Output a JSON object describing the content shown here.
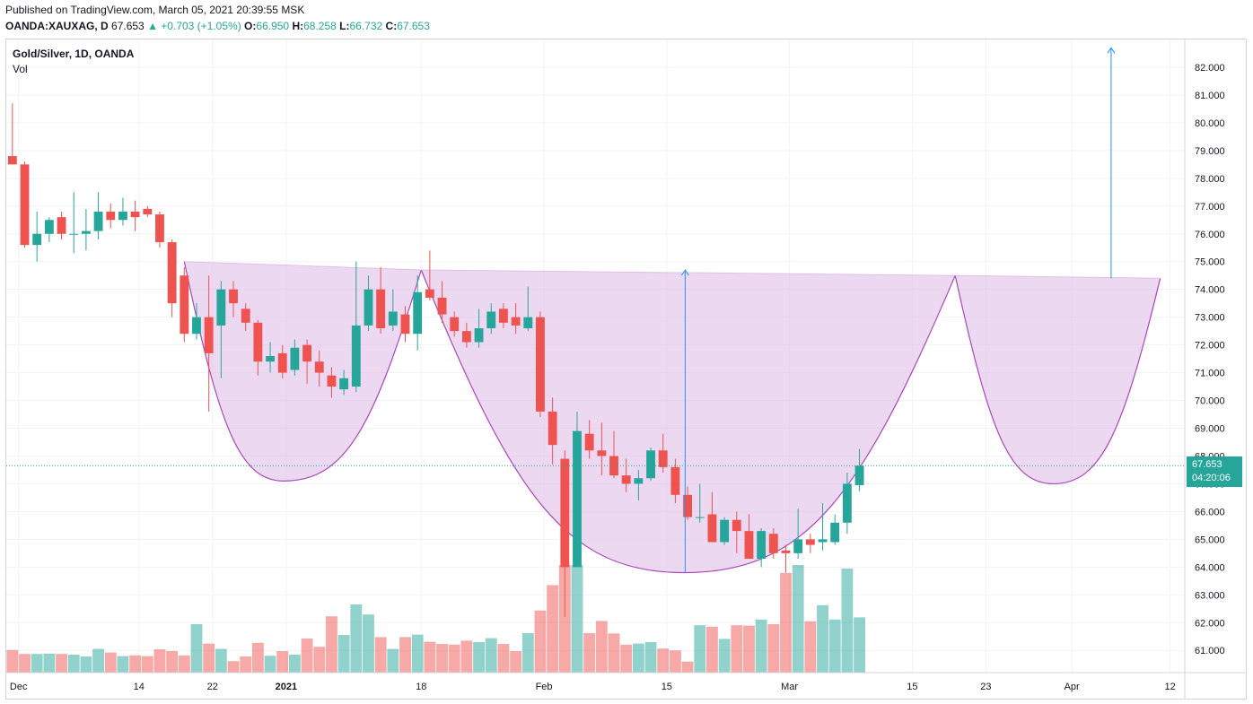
{
  "header": {
    "published": "Published on TradingView.com, March 05, 2021 20:39:55 MSK",
    "symbol": "OANDA:XAUXAG, D",
    "last": "67.653",
    "change": "+0.703 (+1.05%)",
    "open_label": "O:",
    "open": "66.950",
    "high_label": "H:",
    "high": "68.258",
    "low_label": "L:",
    "low": "66.732",
    "close_label": "C:",
    "close": "67.653"
  },
  "legend": {
    "title": "Gold/Silver, 1D, OANDA",
    "volume": "Vol"
  },
  "badge": {
    "price": "67.653",
    "countdown": "04:20:06"
  },
  "colors": {
    "up": "#26a69a",
    "down": "#ef5350",
    "pattern_fill": "#e1bee7",
    "pattern_stroke": "#ab47bc",
    "arrow": "#2196f3"
  },
  "chart_data": {
    "type": "candlestick",
    "title": "Gold/Silver, 1D, OANDA",
    "ylim": [
      60.2,
      83.0
    ],
    "yticks": [
      61,
      62,
      63,
      64,
      65,
      66,
      67,
      68,
      69,
      70,
      71,
      72,
      73,
      74,
      75,
      76,
      77,
      78,
      79,
      80,
      81,
      82
    ],
    "ytick_labels": [
      "61.000",
      "62.000",
      "63.000",
      "64.000",
      "65.000",
      "66.000",
      "67.000",
      "68.000",
      "69.000",
      "70.000",
      "71.000",
      "72.000",
      "73.000",
      "74.000",
      "75.000",
      "76.000",
      "77.000",
      "78.000",
      "79.000",
      "80.000",
      "81.000",
      "82.000"
    ],
    "x_range": [
      -0.5,
      95.5
    ],
    "xticks": [
      {
        "label": "Dec",
        "pos": 0.5,
        "bold": false
      },
      {
        "label": "14",
        "pos": 10.3,
        "bold": false
      },
      {
        "label": "22",
        "pos": 16.3,
        "bold": false
      },
      {
        "label": "2021",
        "pos": 22.3,
        "bold": true
      },
      {
        "label": "18",
        "pos": 33.3,
        "bold": false
      },
      {
        "label": "Feb",
        "pos": 43.3,
        "bold": false
      },
      {
        "label": "15",
        "pos": 53.3,
        "bold": false
      },
      {
        "label": "Mar",
        "pos": 63.3,
        "bold": false
      },
      {
        "label": "15",
        "pos": 73.3,
        "bold": false
      },
      {
        "label": "23",
        "pos": 79.3,
        "bold": false
      },
      {
        "label": "Apr",
        "pos": 86.3,
        "bold": false
      },
      {
        "label": "12",
        "pos": 94.3,
        "bold": false
      }
    ],
    "candles": [
      {
        "o": 78.8,
        "h": 80.7,
        "l": 78.5,
        "c": 78.5,
        "v": 0.63
      },
      {
        "o": 78.5,
        "h": 78.6,
        "l": 75.5,
        "c": 75.6,
        "v": 0.52
      },
      {
        "o": 75.6,
        "h": 76.8,
        "l": 75.0,
        "c": 76.0,
        "v": 0.52
      },
      {
        "o": 76.0,
        "h": 76.6,
        "l": 75.7,
        "c": 76.5,
        "v": 0.53
      },
      {
        "o": 76.6,
        "h": 76.8,
        "l": 75.8,
        "c": 76.0,
        "v": 0.52
      },
      {
        "o": 76.0,
        "h": 77.5,
        "l": 75.3,
        "c": 76.0,
        "v": 0.5
      },
      {
        "o": 76.0,
        "h": 76.9,
        "l": 75.4,
        "c": 76.1,
        "v": 0.45
      },
      {
        "o": 76.1,
        "h": 77.5,
        "l": 75.8,
        "c": 76.8,
        "v": 0.66
      },
      {
        "o": 76.8,
        "h": 77.1,
        "l": 76.2,
        "c": 76.5,
        "v": 0.56
      },
      {
        "o": 76.5,
        "h": 77.3,
        "l": 76.3,
        "c": 76.8,
        "v": 0.46
      },
      {
        "o": 76.8,
        "h": 77.2,
        "l": 76.1,
        "c": 76.6,
        "v": 0.48
      },
      {
        "o": 76.9,
        "h": 77.0,
        "l": 76.6,
        "c": 76.7,
        "v": 0.46
      },
      {
        "o": 76.7,
        "h": 76.8,
        "l": 75.5,
        "c": 75.7,
        "v": 0.65
      },
      {
        "o": 75.7,
        "h": 75.8,
        "l": 73.0,
        "c": 73.5,
        "v": 0.6
      },
      {
        "o": 74.5,
        "h": 74.8,
        "l": 72.1,
        "c": 72.4,
        "v": 0.48
      },
      {
        "o": 72.4,
        "h": 73.5,
        "l": 72.2,
        "c": 73.0,
        "v": 1.35
      },
      {
        "o": 73.0,
        "h": 74.5,
        "l": 69.6,
        "c": 71.7,
        "v": 0.81
      },
      {
        "o": 72.7,
        "h": 74.3,
        "l": 70.8,
        "c": 74.0,
        "v": 0.66
      },
      {
        "o": 74.0,
        "h": 74.3,
        "l": 73.0,
        "c": 73.5,
        "v": 0.32
      },
      {
        "o": 73.3,
        "h": 73.5,
        "l": 72.5,
        "c": 72.8,
        "v": 0.45
      },
      {
        "o": 72.8,
        "h": 72.9,
        "l": 70.9,
        "c": 71.4,
        "v": 0.83
      },
      {
        "o": 71.4,
        "h": 72.1,
        "l": 71.0,
        "c": 71.6,
        "v": 0.47
      },
      {
        "o": 71.7,
        "h": 72.0,
        "l": 70.8,
        "c": 71.0,
        "v": 0.6
      },
      {
        "o": 71.1,
        "h": 72.2,
        "l": 70.9,
        "c": 71.9,
        "v": 0.5
      },
      {
        "o": 72.0,
        "h": 72.2,
        "l": 70.6,
        "c": 71.4,
        "v": 0.95
      },
      {
        "o": 71.4,
        "h": 71.8,
        "l": 70.5,
        "c": 71.0,
        "v": 0.72
      },
      {
        "o": 70.9,
        "h": 71.2,
        "l": 70.1,
        "c": 70.5,
        "v": 1.57
      },
      {
        "o": 70.4,
        "h": 71.1,
        "l": 70.2,
        "c": 70.8,
        "v": 1.05
      },
      {
        "o": 70.5,
        "h": 75.0,
        "l": 70.3,
        "c": 72.7,
        "v": 1.9
      },
      {
        "o": 72.7,
        "h": 74.5,
        "l": 72.5,
        "c": 74.0,
        "v": 1.62
      },
      {
        "o": 74.0,
        "h": 74.8,
        "l": 72.4,
        "c": 72.6,
        "v": 0.99
      },
      {
        "o": 72.7,
        "h": 74.0,
        "l": 72.5,
        "c": 73.2,
        "v": 0.66
      },
      {
        "o": 73.1,
        "h": 73.4,
        "l": 72.1,
        "c": 72.4,
        "v": 0.99
      },
      {
        "o": 72.4,
        "h": 74.5,
        "l": 71.8,
        "c": 73.9,
        "v": 1.06
      },
      {
        "o": 74.0,
        "h": 75.4,
        "l": 73.6,
        "c": 73.7,
        "v": 0.86
      },
      {
        "o": 73.7,
        "h": 74.3,
        "l": 72.8,
        "c": 73.1,
        "v": 0.8
      },
      {
        "o": 73.0,
        "h": 73.2,
        "l": 72.3,
        "c": 72.5,
        "v": 0.78
      },
      {
        "o": 72.5,
        "h": 72.8,
        "l": 71.9,
        "c": 72.1,
        "v": 0.89
      },
      {
        "o": 72.1,
        "h": 73.3,
        "l": 71.9,
        "c": 72.6,
        "v": 0.85
      },
      {
        "o": 72.6,
        "h": 73.5,
        "l": 72.4,
        "c": 73.2,
        "v": 0.96
      },
      {
        "o": 73.3,
        "h": 73.5,
        "l": 72.6,
        "c": 72.8,
        "v": 0.8
      },
      {
        "o": 73.0,
        "h": 73.5,
        "l": 72.4,
        "c": 72.7,
        "v": 0.6
      },
      {
        "o": 72.6,
        "h": 74.1,
        "l": 72.5,
        "c": 73.0,
        "v": 1.1
      },
      {
        "o": 73.0,
        "h": 73.2,
        "l": 69.4,
        "c": 69.6,
        "v": 1.73
      },
      {
        "o": 69.6,
        "h": 70.1,
        "l": 67.7,
        "c": 68.4,
        "v": 2.44
      },
      {
        "o": 67.9,
        "h": 68.2,
        "l": 62.2,
        "c": 64.0,
        "v": 3.0
      },
      {
        "o": 64.0,
        "h": 69.6,
        "l": 64.0,
        "c": 68.9,
        "v": 3.0
      },
      {
        "o": 68.8,
        "h": 69.3,
        "l": 67.9,
        "c": 68.2,
        "v": 1.1
      },
      {
        "o": 68.2,
        "h": 69.2,
        "l": 67.3,
        "c": 68.0,
        "v": 1.44
      },
      {
        "o": 68.0,
        "h": 68.9,
        "l": 67.2,
        "c": 67.3,
        "v": 1.09
      },
      {
        "o": 67.3,
        "h": 67.9,
        "l": 66.7,
        "c": 67.0,
        "v": 0.78
      },
      {
        "o": 67.0,
        "h": 67.5,
        "l": 66.4,
        "c": 67.2,
        "v": 0.81
      },
      {
        "o": 67.2,
        "h": 68.3,
        "l": 67.1,
        "c": 68.2,
        "v": 0.85
      },
      {
        "o": 68.2,
        "h": 68.8,
        "l": 67.4,
        "c": 67.6,
        "v": 0.67
      },
      {
        "o": 67.6,
        "h": 67.9,
        "l": 66.3,
        "c": 66.6,
        "v": 0.62
      },
      {
        "o": 66.6,
        "h": 66.9,
        "l": 65.7,
        "c": 65.8,
        "v": 0.31
      },
      {
        "o": 65.8,
        "h": 67.0,
        "l": 65.6,
        "c": 65.8,
        "v": 1.32
      },
      {
        "o": 65.9,
        "h": 66.7,
        "l": 64.9,
        "c": 64.9,
        "v": 1.28
      },
      {
        "o": 64.9,
        "h": 65.8,
        "l": 64.8,
        "c": 65.7,
        "v": 0.94
      },
      {
        "o": 65.7,
        "h": 66.0,
        "l": 64.5,
        "c": 65.3,
        "v": 1.32
      },
      {
        "o": 65.3,
        "h": 65.9,
        "l": 64.3,
        "c": 64.3,
        "v": 1.31
      },
      {
        "o": 64.3,
        "h": 65.4,
        "l": 64.0,
        "c": 65.3,
        "v": 1.48
      },
      {
        "o": 65.2,
        "h": 65.4,
        "l": 64.3,
        "c": 64.5,
        "v": 1.35
      },
      {
        "o": 64.6,
        "h": 64.8,
        "l": 63.8,
        "c": 64.5,
        "v": 2.78
      },
      {
        "o": 64.5,
        "h": 66.1,
        "l": 64.3,
        "c": 65.0,
        "v": 3.0
      },
      {
        "o": 65.0,
        "h": 65.2,
        "l": 64.5,
        "c": 64.8,
        "v": 1.43
      },
      {
        "o": 64.9,
        "h": 66.3,
        "l": 64.6,
        "c": 65.0,
        "v": 1.88
      },
      {
        "o": 64.9,
        "h": 65.9,
        "l": 64.8,
        "c": 65.6,
        "v": 1.48
      },
      {
        "o": 65.6,
        "h": 67.4,
        "l": 65.2,
        "c": 67.0,
        "v": 2.9
      },
      {
        "o": 66.95,
        "h": 68.258,
        "l": 66.732,
        "c": 67.653,
        "v": 1.54
      }
    ],
    "pattern": {
      "left_cup": {
        "x0": 14,
        "x1": 33.3,
        "xb": 22.1,
        "y_top_left": 75.0,
        "y_top_right": 74.7,
        "y_bottom": 67.1
      },
      "big_cup": {
        "x0": 33.3,
        "x1": 76.8,
        "xb": 54.7,
        "y_top_left": 74.7,
        "y_top_right": 74.5,
        "y_bottom": 63.8
      },
      "right_cup": {
        "x0": 76.8,
        "x1": 93.5,
        "xb": 84.8,
        "y_top_left": 74.5,
        "y_top_right": 74.4,
        "y_bottom": 67.0
      }
    },
    "arrows": [
      {
        "x": 54.8,
        "from": 63.8,
        "to": 74.7
      },
      {
        "x": 89.5,
        "from": 74.4,
        "to": 82.7
      }
    ],
    "last_price_line": 67.653
  }
}
